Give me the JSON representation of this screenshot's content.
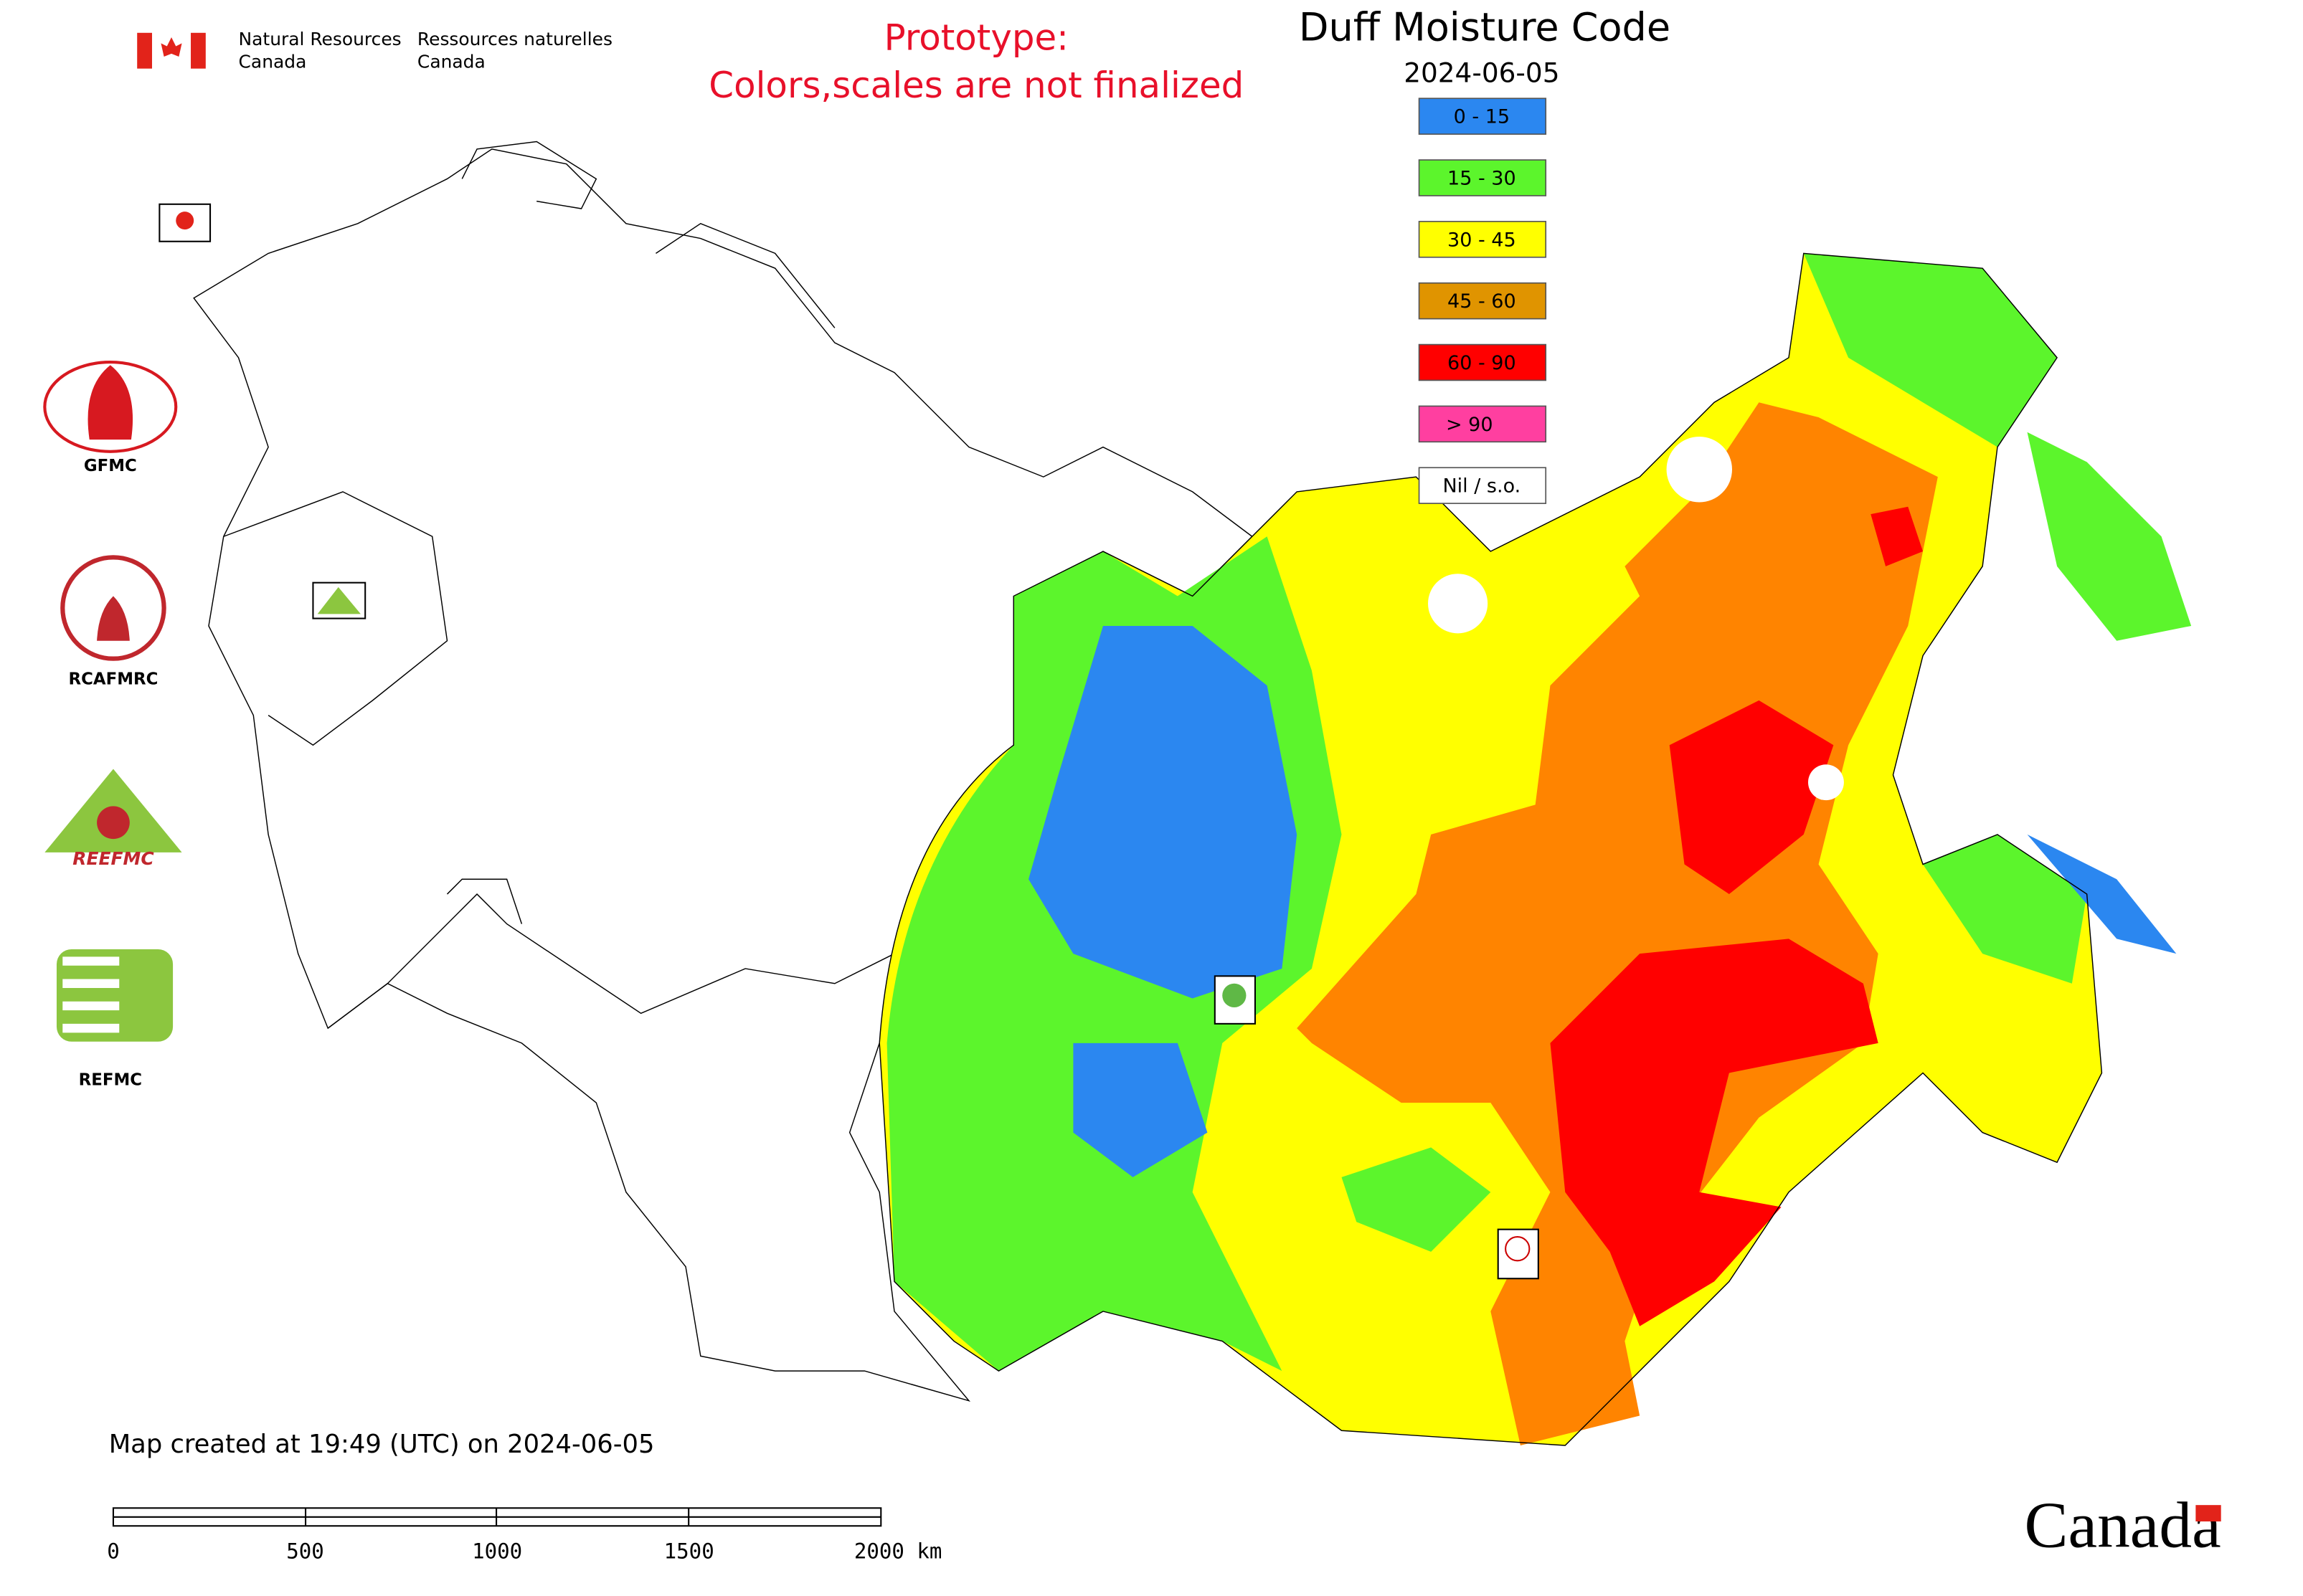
{
  "header": {
    "department_en": [
      "Natural Resources",
      "Canada"
    ],
    "department_fr": [
      "Ressources naturelles",
      "Canada"
    ],
    "notice": [
      "Prototype:",
      "Colors,scales are not finalized"
    ],
    "title": "Duff Moisture Code",
    "date": "2024-06-05"
  },
  "legend": [
    {
      "label": "0 - 15",
      "color": "#2b87f0"
    },
    {
      "label": "15 - 30",
      "color": "#5cf52c"
    },
    {
      "label": "30 - 45",
      "color": "#ffff00"
    },
    {
      "label": "45 - 60",
      "color": "#e09400"
    },
    {
      "label": "60 - 90",
      "color": "#ff0000"
    },
    {
      "label": "> 90",
      "color": "#ff3fa0"
    },
    {
      "label": "Nil / s.o.",
      "color": "#ffffff"
    }
  ],
  "region_colors": {
    "orange": "#ff8400"
  },
  "logos": [
    "GFMC",
    "RCAFMRC",
    "REEFMC",
    "REFMC"
  ],
  "footer": {
    "created": "Map created at 19:49 (UTC) on 2024-06-05",
    "scale_labels": [
      "0",
      "500",
      "1000",
      "1500",
      "2000 km"
    ],
    "wordmark": "Canada"
  }
}
